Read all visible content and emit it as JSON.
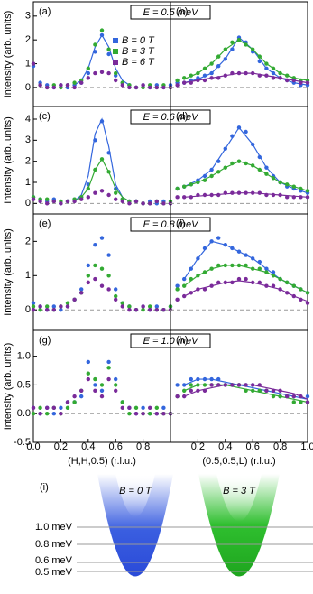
{
  "chart_data": [
    {
      "type": "scatter",
      "panel": "(a)",
      "annotation": "E = 0.5 meV",
      "ylabel": "Intensity (arb. units)",
      "xlim": [
        0,
        1
      ],
      "ylim": [
        -0.8,
        3.6
      ],
      "yticks": [
        0,
        1,
        2,
        3
      ],
      "x": [
        0,
        0.05,
        0.1,
        0.15,
        0.2,
        0.25,
        0.3,
        0.35,
        0.4,
        0.45,
        0.5,
        0.55,
        0.6,
        0.65,
        0.7,
        0.75,
        0.8,
        0.85,
        0.9,
        0.95,
        1
      ],
      "fit_x": [
        0.3,
        0.35,
        0.4,
        0.45,
        0.5,
        0.55,
        0.6,
        0.65,
        0.7
      ],
      "series": [
        {
          "name": "B = 0 T",
          "color": "#3366dd",
          "values": [
            0.9,
            0.2,
            0.1,
            0,
            0.1,
            0,
            0.1,
            0.2,
            0.6,
            1.5,
            2.2,
            1.4,
            0.5,
            0.2,
            0.1,
            0,
            0.1,
            0,
            0.1,
            0,
            0.1
          ],
          "fit": [
            0.1,
            0.3,
            0.8,
            1.7,
            2.2,
            1.7,
            0.8,
            0.3,
            0.1
          ]
        },
        {
          "name": "B = 3 T",
          "color": "#33aa33",
          "values": [
            1,
            0.1,
            0,
            0.1,
            0,
            0.1,
            0.2,
            0.3,
            0.8,
            1.8,
            2.4,
            1.6,
            0.6,
            0.2,
            0.1,
            0,
            0,
            0.1,
            0,
            0.1,
            0
          ]
        },
        {
          "name": "B = 6 T",
          "color": "#7a2a9a",
          "values": [
            1,
            0.1,
            0,
            0,
            0.1,
            0.1,
            0,
            0.2,
            0.4,
            0.6,
            0.65,
            0.6,
            0.3,
            0.1,
            0,
            0,
            0.1,
            0,
            0,
            0,
            0
          ]
        }
      ]
    },
    {
      "type": "scatter",
      "panel": "(b)",
      "xlim": [
        0,
        1
      ],
      "ylim": [
        -0.8,
        3.6
      ],
      "x": [
        0.05,
        0.1,
        0.15,
        0.2,
        0.25,
        0.3,
        0.35,
        0.4,
        0.45,
        0.5,
        0.55,
        0.6,
        0.65,
        0.7,
        0.75,
        0.8,
        0.85,
        0.9,
        0.95,
        1
      ],
      "fit_x": [
        0.1,
        0.2,
        0.3,
        0.4,
        0.5,
        0.6,
        0.7,
        0.8,
        0.9,
        1
      ],
      "series": [
        {
          "color": "#3366dd",
          "values": [
            0.2,
            0.2,
            0.3,
            0.4,
            0.5,
            0.6,
            0.9,
            1.2,
            1.6,
            2.1,
            1.9,
            1.5,
            1.1,
            0.8,
            0.6,
            0.4,
            0.3,
            0.2,
            0.1,
            0.1
          ],
          "fit": [
            0.2,
            0.35,
            0.6,
            1.2,
            2.1,
            1.6,
            0.8,
            0.4,
            0.2,
            0.1
          ]
        },
        {
          "color": "#33aa33",
          "values": [
            0.3,
            0.4,
            0.5,
            0.6,
            0.8,
            1,
            1.3,
            1.6,
            1.9,
            2,
            1.8,
            1.6,
            1.3,
            1,
            0.8,
            0.6,
            0.5,
            0.4,
            0.3,
            0.3
          ],
          "fit": [
            0.35,
            0.6,
            1,
            1.6,
            2,
            1.6,
            1,
            0.6,
            0.4,
            0.3
          ]
        },
        {
          "color": "#7a2a9a",
          "values": [
            0.1,
            0.2,
            0.2,
            0.3,
            0.3,
            0.4,
            0.4,
            0.5,
            0.6,
            0.6,
            0.6,
            0.6,
            0.5,
            0.5,
            0.4,
            0.4,
            0.3,
            0.3,
            0.2,
            0.2
          ],
          "fit": [
            0.2,
            0.3,
            0.4,
            0.5,
            0.6,
            0.6,
            0.5,
            0.4,
            0.3,
            0.2
          ]
        }
      ]
    },
    {
      "type": "scatter",
      "panel": "(c)",
      "annotation": "E = 0.6 meV",
      "ylabel": "Intensity (arb. units)",
      "xlim": [
        0,
        1
      ],
      "ylim": [
        -0.5,
        4.6
      ],
      "yticks": [
        0,
        1,
        2,
        3,
        4
      ],
      "x": [
        0,
        0.05,
        0.1,
        0.15,
        0.2,
        0.25,
        0.3,
        0.35,
        0.4,
        0.45,
        0.5,
        0.55,
        0.6,
        0.65,
        0.7,
        0.75,
        0.8,
        0.85,
        0.9,
        0.95,
        1
      ],
      "fit_x": [
        0.3,
        0.35,
        0.4,
        0.45,
        0.5,
        0.55,
        0.6,
        0.65,
        0.7
      ],
      "series": [
        {
          "color": "#3366dd",
          "values": [
            0.3,
            0.2,
            0.1,
            0.2,
            0,
            0.1,
            0.2,
            0.3,
            0.9,
            3,
            3.9,
            2.4,
            0.7,
            0.2,
            0.1,
            0.1,
            0,
            0.1,
            0,
            0.1,
            0
          ],
          "fit": [
            0.1,
            0.4,
            1.3,
            3.3,
            4,
            2.7,
            0.9,
            0.3,
            0.1
          ]
        },
        {
          "color": "#33aa33",
          "values": [
            0.3,
            0.2,
            0.2,
            0.1,
            0.1,
            0.1,
            0.2,
            0.3,
            0.7,
            1.6,
            2.1,
            1.5,
            0.5,
            0.2,
            0.1,
            0.1,
            0,
            0,
            0.1,
            0,
            0.1
          ],
          "fit": [
            0.1,
            0.3,
            0.7,
            1.6,
            2.1,
            1.5,
            0.7,
            0.3,
            0.1
          ]
        },
        {
          "color": "#7a2a9a",
          "values": [
            0.2,
            0.1,
            0,
            0.1,
            0,
            0.1,
            0.1,
            0.2,
            0.3,
            0.5,
            0.6,
            0.4,
            0.2,
            0.1,
            0,
            0.1,
            0,
            0,
            0.1,
            0,
            0
          ]
        }
      ]
    },
    {
      "type": "scatter",
      "panel": "(d)",
      "xlim": [
        0,
        1
      ],
      "ylim": [
        -0.5,
        4.6
      ],
      "x": [
        0.05,
        0.1,
        0.15,
        0.2,
        0.25,
        0.3,
        0.35,
        0.4,
        0.45,
        0.5,
        0.55,
        0.6,
        0.65,
        0.7,
        0.75,
        0.8,
        0.85,
        0.9,
        0.95,
        1
      ],
      "fit_x": [
        0.1,
        0.2,
        0.3,
        0.4,
        0.5,
        0.6,
        0.7,
        0.8,
        0.9,
        1
      ],
      "series": [
        {
          "color": "#3366dd",
          "values": [
            0.7,
            0.8,
            0.9,
            1.1,
            1.3,
            1.6,
            2,
            2.6,
            3.2,
            3.6,
            3.4,
            2.8,
            2.2,
            1.7,
            1.3,
            1,
            0.8,
            0.7,
            0.6,
            0.5
          ],
          "fit": [
            0.8,
            1.1,
            1.6,
            2.6,
            3.6,
            2.8,
            1.7,
            1,
            0.7,
            0.5
          ]
        },
        {
          "color": "#33aa33",
          "values": [
            0.7,
            0.8,
            0.9,
            1,
            1.1,
            1.3,
            1.5,
            1.7,
            1.9,
            2,
            1.9,
            1.8,
            1.6,
            1.4,
            1.2,
            1,
            0.9,
            0.8,
            0.7,
            0.6
          ],
          "fit": [
            0.8,
            1,
            1.3,
            1.7,
            2,
            1.8,
            1.4,
            1,
            0.8,
            0.6
          ]
        },
        {
          "color": "#7a2a9a",
          "values": [
            0.3,
            0.3,
            0.3,
            0.4,
            0.4,
            0.4,
            0.4,
            0.5,
            0.5,
            0.5,
            0.5,
            0.5,
            0.5,
            0.4,
            0.4,
            0.4,
            0.3,
            0.3,
            0.3,
            0.3
          ],
          "fit": [
            0.3,
            0.35,
            0.4,
            0.45,
            0.5,
            0.5,
            0.45,
            0.4,
            0.35,
            0.3
          ]
        }
      ]
    },
    {
      "type": "scatter",
      "panel": "(e)",
      "annotation": "E = 0.8 meV",
      "ylabel": "Intensity (arb. units)",
      "xlim": [
        0,
        1
      ],
      "ylim": [
        -0.6,
        2.8
      ],
      "yticks": [
        0,
        1,
        2
      ],
      "x": [
        0,
        0.05,
        0.1,
        0.15,
        0.2,
        0.25,
        0.3,
        0.35,
        0.4,
        0.45,
        0.5,
        0.55,
        0.6,
        0.65,
        0.7,
        0.75,
        0.8,
        0.85,
        0.9,
        0.95,
        1
      ],
      "series": [
        {
          "color": "#3366dd",
          "values": [
            0.2,
            0.1,
            0,
            0.1,
            0,
            0.1,
            0.3,
            0.6,
            1.3,
            1.9,
            2.1,
            1.6,
            0.6,
            0.2,
            0.1,
            0,
            0.1,
            0,
            0.1,
            0,
            0.1
          ]
        },
        {
          "color": "#33aa33",
          "values": [
            0.1,
            0,
            0.1,
            0,
            0.1,
            0.2,
            0.3,
            0.5,
            1,
            1.3,
            1.2,
            1,
            0.4,
            0.2,
            0.1,
            0,
            0,
            0.1,
            0,
            0,
            0.1
          ]
        },
        {
          "color": "#7a2a9a",
          "values": [
            0,
            0.1,
            0,
            0,
            0.1,
            0.1,
            0.3,
            0.5,
            0.8,
            0.9,
            0.7,
            0.6,
            0.3,
            0.1,
            0,
            0,
            0.1,
            0,
            0,
            0,
            0
          ]
        }
      ]
    },
    {
      "type": "scatter",
      "panel": "(f)",
      "xlim": [
        0,
        1
      ],
      "ylim": [
        -0.6,
        2.8
      ],
      "x": [
        0.05,
        0.1,
        0.15,
        0.2,
        0.25,
        0.3,
        0.35,
        0.4,
        0.45,
        0.5,
        0.55,
        0.6,
        0.65,
        0.7,
        0.75,
        0.8,
        0.85,
        0.9,
        0.95,
        1
      ],
      "fit_x": [
        0.1,
        0.2,
        0.3,
        0.4,
        0.5,
        0.6,
        0.7,
        0.8,
        0.9,
        1
      ],
      "series": [
        {
          "color": "#3366dd",
          "values": [
            0.7,
            0.9,
            1.2,
            1.5,
            1.8,
            2,
            2.1,
            1.9,
            1.8,
            1.7,
            1.6,
            1.5,
            1.4,
            1.2,
            1.1,
            0.9,
            0.8,
            0.7,
            0.6,
            0.5
          ],
          "fit": [
            0.9,
            1.5,
            2,
            1.9,
            1.7,
            1.5,
            1.2,
            0.9,
            0.7,
            0.5
          ]
        },
        {
          "color": "#33aa33",
          "values": [
            0.6,
            0.7,
            0.9,
            1,
            1.1,
            1.2,
            1.3,
            1.3,
            1.3,
            1.3,
            1.3,
            1.2,
            1.2,
            1.1,
            1,
            0.9,
            0.8,
            0.7,
            0.6,
            0.5
          ],
          "fit": [
            0.7,
            1,
            1.2,
            1.3,
            1.3,
            1.2,
            1.1,
            0.9,
            0.7,
            0.5
          ]
        },
        {
          "color": "#7a2a9a",
          "values": [
            0.3,
            0.4,
            0.5,
            0.6,
            0.6,
            0.7,
            0.8,
            0.8,
            0.8,
            0.9,
            0.9,
            0.8,
            0.8,
            0.7,
            0.7,
            0.6,
            0.5,
            0.4,
            0.3,
            0.2
          ],
          "fit": [
            0.4,
            0.6,
            0.7,
            0.8,
            0.85,
            0.8,
            0.7,
            0.6,
            0.4,
            0.25
          ]
        }
      ]
    },
    {
      "type": "scatter",
      "panel": "(g)",
      "annotation": "E = 1.0 meV",
      "ylabel": "Intensity (arb. units)",
      "xlabel": "(H,H,0.5) (r.l.u.)",
      "xlim": [
        0,
        1
      ],
      "ylim": [
        -0.5,
        1.45
      ],
      "yticks": [
        {
          "value": -0.5,
          "label": "-0.5"
        },
        {
          "value": 0,
          "label": "0.0"
        },
        0.5,
        {
          "value": 1,
          "label": "1.0"
        }
      ],
      "xticks": [
        {
          "value": 0,
          "label": "0.0"
        },
        0.2,
        0.4,
        0.6,
        0.8
      ],
      "x": [
        0,
        0.05,
        0.1,
        0.15,
        0.2,
        0.25,
        0.3,
        0.35,
        0.4,
        0.45,
        0.5,
        0.55,
        0.6,
        0.65,
        0.7,
        0.75,
        0.8,
        0.85,
        0.9,
        0.95,
        1
      ],
      "series": [
        {
          "color": "#3366dd",
          "values": [
            0.1,
            0,
            0.1,
            0,
            0.1,
            0.2,
            0.2,
            0.3,
            0.9,
            0.5,
            0.4,
            0.9,
            0.6,
            0.2,
            0.1,
            0,
            0.1,
            0,
            0,
            0.1,
            0
          ]
        },
        {
          "color": "#33aa33",
          "values": [
            0,
            0.1,
            0,
            0.1,
            0,
            0.1,
            0.2,
            0.4,
            0.7,
            0.6,
            0.5,
            0.8,
            0.5,
            0.2,
            0,
            0.1,
            0,
            0,
            0.1,
            0,
            0
          ]
        },
        {
          "color": "#7a2a9a",
          "values": [
            0.1,
            0,
            0.1,
            0.1,
            0,
            0.2,
            0.3,
            0.4,
            0.6,
            0.4,
            0.3,
            0.6,
            0.4,
            0.1,
            0.1,
            0,
            0,
            0.1,
            0,
            0,
            0
          ]
        }
      ]
    },
    {
      "type": "scatter",
      "panel": "(h)",
      "xlabel": "(0.5,0.5,L) (r.l.u.)",
      "xlim": [
        0,
        1
      ],
      "ylim": [
        -0.5,
        1.45
      ],
      "xticks": [
        0.2,
        0.4,
        0.6,
        0.8,
        {
          "value": 1,
          "label": "1.0"
        }
      ],
      "x": [
        0.05,
        0.1,
        0.15,
        0.2,
        0.25,
        0.3,
        0.35,
        0.4,
        0.45,
        0.5,
        0.55,
        0.6,
        0.65,
        0.7,
        0.75,
        0.8,
        0.85,
        0.9,
        0.95,
        1
      ],
      "fit_x": [
        0.1,
        0.2,
        0.3,
        0.4,
        0.5,
        0.6,
        0.7,
        0.8,
        0.9,
        1
      ],
      "series": [
        {
          "color": "#3366dd",
          "values": [
            0.5,
            0.5,
            0.6,
            0.6,
            0.6,
            0.6,
            0.6,
            0.5,
            0.5,
            0.5,
            0.5,
            0.5,
            0.4,
            0.4,
            0.4,
            0.3,
            0.3,
            0.3,
            0.2,
            0.3
          ],
          "fit": [
            0.5,
            0.6,
            0.6,
            0.55,
            0.5,
            0.45,
            0.4,
            0.35,
            0.3,
            0.25
          ]
        },
        {
          "color": "#33aa33",
          "values": [
            0.3,
            0.4,
            0.5,
            0.5,
            0.5,
            0.5,
            0.5,
            0.5,
            0.5,
            0.5,
            0.4,
            0.4,
            0.4,
            0.4,
            0.3,
            0.3,
            0.3,
            0.2,
            0.2,
            0.2
          ],
          "fit": [
            0.4,
            0.5,
            0.5,
            0.5,
            0.45,
            0.4,
            0.35,
            0.3,
            0.25,
            0.2
          ]
        },
        {
          "color": "#7a2a9a",
          "values": [
            0.3,
            0.3,
            0.4,
            0.4,
            0.4,
            0.5,
            0.5,
            0.5,
            0.5,
            0.5,
            0.5,
            0.5,
            0.5,
            0.4,
            0.4,
            0.4,
            0.3,
            0.3,
            0.3,
            0.2
          ],
          "fit": [
            0.3,
            0.4,
            0.45,
            0.5,
            0.5,
            0.5,
            0.45,
            0.4,
            0.35,
            0.25
          ]
        }
      ]
    }
  ],
  "schematic": {
    "label": "(i)",
    "left_title": "B = 0 T",
    "right_title": "B = 3 T",
    "energies": [
      "1.0 meV",
      "0.8 meV",
      "0.6 meV",
      "0.5 meV"
    ]
  }
}
